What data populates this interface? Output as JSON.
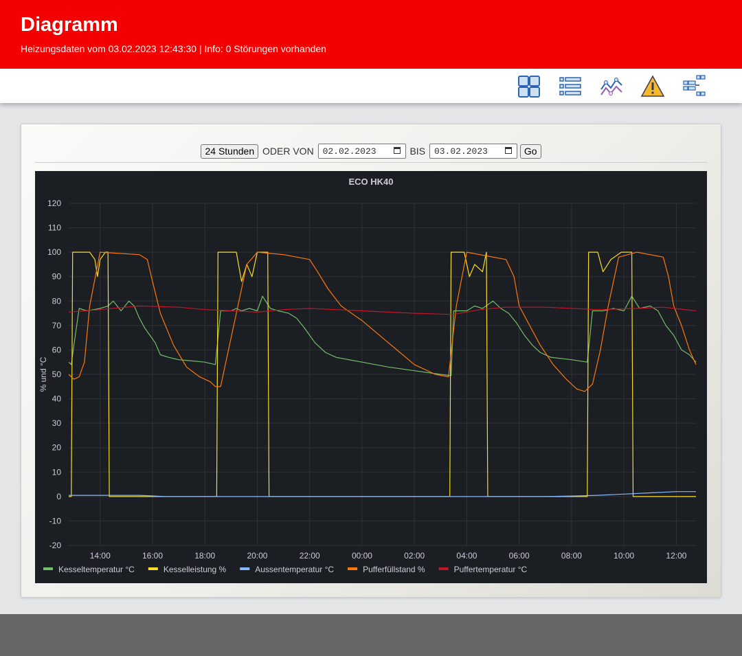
{
  "header": {
    "title": "Diagramm",
    "subtitle": "Heizungsdaten vom 03.02.2023 12:43:30 | Info: 0 Störungen vorhanden",
    "bg_color": "#f50000"
  },
  "toolbar": {
    "icons": [
      "dashboard-grid-icon",
      "list-icon",
      "chart-line-icon",
      "warning-icon",
      "settings-list-icon"
    ]
  },
  "controls": {
    "button_24h": "24 Stunden",
    "oder_von": "ODER VON",
    "date_from": "02.02.2023",
    "bis": "BIS",
    "date_to": "03.02.2023",
    "go": "Go"
  },
  "chart_data": {
    "type": "line",
    "title": "ECO HK40",
    "ylabel": "% und °C",
    "xlabel": "",
    "ylim": [
      -20,
      120
    ],
    "yticks": [
      -20,
      -10,
      0,
      10,
      20,
      30,
      40,
      50,
      60,
      70,
      80,
      90,
      100,
      110,
      120
    ],
    "x_unit": "hours since 02.02.2023 00:00",
    "xlim": [
      12.8,
      36.75
    ],
    "xticks": [
      "14:00",
      "16:00",
      "18:00",
      "20:00",
      "22:00",
      "00:00",
      "02:00",
      "04:00",
      "06:00",
      "08:00",
      "10:00",
      "12:00"
    ],
    "grid": true,
    "legend_position": "bottom-left",
    "background": "#1b1e23",
    "series": [
      {
        "name": "Kesseltemperatur °C",
        "color": "#73bf69",
        "points": [
          [
            12.8,
            55
          ],
          [
            12.9,
            54
          ],
          [
            13.0,
            62
          ],
          [
            13.2,
            77
          ],
          [
            13.5,
            76
          ],
          [
            14.0,
            77
          ],
          [
            14.3,
            78
          ],
          [
            14.5,
            80
          ],
          [
            14.8,
            76
          ],
          [
            15.1,
            80
          ],
          [
            15.3,
            78
          ],
          [
            15.5,
            73
          ],
          [
            15.7,
            69
          ],
          [
            15.9,
            66
          ],
          [
            16.1,
            63
          ],
          [
            16.3,
            58
          ],
          [
            16.6,
            57
          ],
          [
            17.0,
            56
          ],
          [
            17.5,
            55.5
          ],
          [
            18.0,
            55
          ],
          [
            18.4,
            54
          ],
          [
            18.6,
            76
          ],
          [
            19.0,
            76
          ],
          [
            19.2,
            77
          ],
          [
            19.4,
            76
          ],
          [
            19.7,
            77
          ],
          [
            20.0,
            76
          ],
          [
            20.2,
            82
          ],
          [
            20.5,
            77
          ],
          [
            20.8,
            76
          ],
          [
            21.2,
            75
          ],
          [
            21.5,
            73
          ],
          [
            21.8,
            69
          ],
          [
            22.2,
            63
          ],
          [
            22.6,
            59
          ],
          [
            23.0,
            57
          ],
          [
            23.5,
            56
          ],
          [
            24.0,
            55
          ],
          [
            25.0,
            53
          ],
          [
            26.0,
            51.5
          ],
          [
            27.0,
            50
          ],
          [
            27.4,
            49.5
          ],
          [
            27.5,
            76
          ],
          [
            28.0,
            76
          ],
          [
            28.3,
            78
          ],
          [
            28.6,
            77
          ],
          [
            29.0,
            80
          ],
          [
            29.3,
            77
          ],
          [
            29.6,
            75
          ],
          [
            29.9,
            71
          ],
          [
            30.2,
            66
          ],
          [
            30.5,
            62
          ],
          [
            30.8,
            59
          ],
          [
            31.2,
            57
          ],
          [
            32.0,
            56
          ],
          [
            32.6,
            55
          ],
          [
            32.8,
            76
          ],
          [
            33.2,
            76
          ],
          [
            33.6,
            77
          ],
          [
            34.0,
            76
          ],
          [
            34.3,
            82
          ],
          [
            34.6,
            77
          ],
          [
            35.0,
            78
          ],
          [
            35.3,
            76
          ],
          [
            35.6,
            70
          ],
          [
            35.9,
            66
          ],
          [
            36.2,
            60
          ],
          [
            36.5,
            58
          ],
          [
            36.75,
            55
          ]
        ]
      },
      {
        "name": "Kesselleistung %",
        "color": "#fade2a",
        "points": [
          [
            12.8,
            0
          ],
          [
            12.9,
            0
          ],
          [
            12.95,
            100
          ],
          [
            13.6,
            100
          ],
          [
            13.8,
            97
          ],
          [
            13.9,
            90
          ],
          [
            14.0,
            97
          ],
          [
            14.2,
            100
          ],
          [
            14.3,
            100
          ],
          [
            14.35,
            0
          ],
          [
            18.45,
            0
          ],
          [
            18.5,
            100
          ],
          [
            19.2,
            100
          ],
          [
            19.4,
            88
          ],
          [
            19.6,
            95
          ],
          [
            19.8,
            90
          ],
          [
            20.0,
            100
          ],
          [
            20.4,
            100
          ],
          [
            20.45,
            0
          ],
          [
            27.35,
            0
          ],
          [
            27.4,
            100
          ],
          [
            27.9,
            100
          ],
          [
            28.1,
            90
          ],
          [
            28.3,
            95
          ],
          [
            28.6,
            92
          ],
          [
            28.75,
            100
          ],
          [
            28.8,
            0
          ],
          [
            32.6,
            0
          ],
          [
            32.65,
            100
          ],
          [
            33.0,
            100
          ],
          [
            33.2,
            92
          ],
          [
            33.5,
            97
          ],
          [
            33.9,
            100
          ],
          [
            34.3,
            100
          ],
          [
            34.35,
            0
          ],
          [
            36.75,
            0
          ]
        ]
      },
      {
        "name": "Aussentemperatur °C",
        "color": "#8ab8ff",
        "points": [
          [
            12.8,
            0.5
          ],
          [
            15.5,
            0.5
          ],
          [
            16.5,
            0
          ],
          [
            31.0,
            0
          ],
          [
            32.0,
            0.2
          ],
          [
            33.0,
            0.5
          ],
          [
            34.0,
            1
          ],
          [
            35.0,
            1.5
          ],
          [
            36.0,
            2
          ],
          [
            36.75,
            2
          ]
        ]
      },
      {
        "name": "Pufferfüllstand %",
        "color": "#ff780a",
        "points": [
          [
            12.8,
            50
          ],
          [
            13.0,
            48
          ],
          [
            13.2,
            49
          ],
          [
            13.4,
            55
          ],
          [
            13.6,
            78
          ],
          [
            14.0,
            100
          ],
          [
            15.5,
            99
          ],
          [
            15.8,
            97
          ],
          [
            16.0,
            88
          ],
          [
            16.3,
            75
          ],
          [
            16.8,
            62
          ],
          [
            17.3,
            53
          ],
          [
            17.8,
            49
          ],
          [
            18.2,
            47
          ],
          [
            18.4,
            45
          ],
          [
            18.6,
            45
          ],
          [
            18.8,
            55
          ],
          [
            19.2,
            75
          ],
          [
            19.6,
            95
          ],
          [
            20.0,
            100
          ],
          [
            21.0,
            99
          ],
          [
            22.0,
            97
          ],
          [
            22.3,
            92
          ],
          [
            22.7,
            85
          ],
          [
            23.2,
            78
          ],
          [
            24.0,
            72
          ],
          [
            25.0,
            63
          ],
          [
            26.0,
            54
          ],
          [
            26.8,
            50
          ],
          [
            27.3,
            49
          ],
          [
            27.6,
            78
          ],
          [
            28.0,
            100
          ],
          [
            29.5,
            97
          ],
          [
            29.8,
            90
          ],
          [
            30.0,
            78
          ],
          [
            30.3,
            72
          ],
          [
            30.8,
            62
          ],
          [
            31.3,
            54
          ],
          [
            31.8,
            48
          ],
          [
            32.2,
            44
          ],
          [
            32.5,
            43
          ],
          [
            32.8,
            46
          ],
          [
            33.1,
            60
          ],
          [
            33.4,
            78
          ],
          [
            33.8,
            98
          ],
          [
            34.5,
            100
          ],
          [
            35.5,
            98
          ],
          [
            35.7,
            90
          ],
          [
            35.9,
            78
          ],
          [
            36.2,
            70
          ],
          [
            36.5,
            60
          ],
          [
            36.75,
            54
          ]
        ]
      },
      {
        "name": "Puffertemperatur °C",
        "color": "#c4162a",
        "points": [
          [
            12.8,
            75.5
          ],
          [
            14.0,
            76.5
          ],
          [
            15.5,
            78
          ],
          [
            17.0,
            77.5
          ],
          [
            18.0,
            76.5
          ],
          [
            19.0,
            76
          ],
          [
            20.0,
            75.5
          ],
          [
            21.0,
            76.5
          ],
          [
            22.0,
            77
          ],
          [
            24.0,
            76
          ],
          [
            26.0,
            75
          ],
          [
            27.5,
            74.5
          ],
          [
            28.5,
            76.5
          ],
          [
            29.5,
            77.5
          ],
          [
            31.0,
            77.5
          ],
          [
            33.0,
            76.5
          ],
          [
            34.5,
            77
          ],
          [
            35.5,
            77.5
          ],
          [
            36.75,
            76
          ]
        ]
      }
    ]
  }
}
